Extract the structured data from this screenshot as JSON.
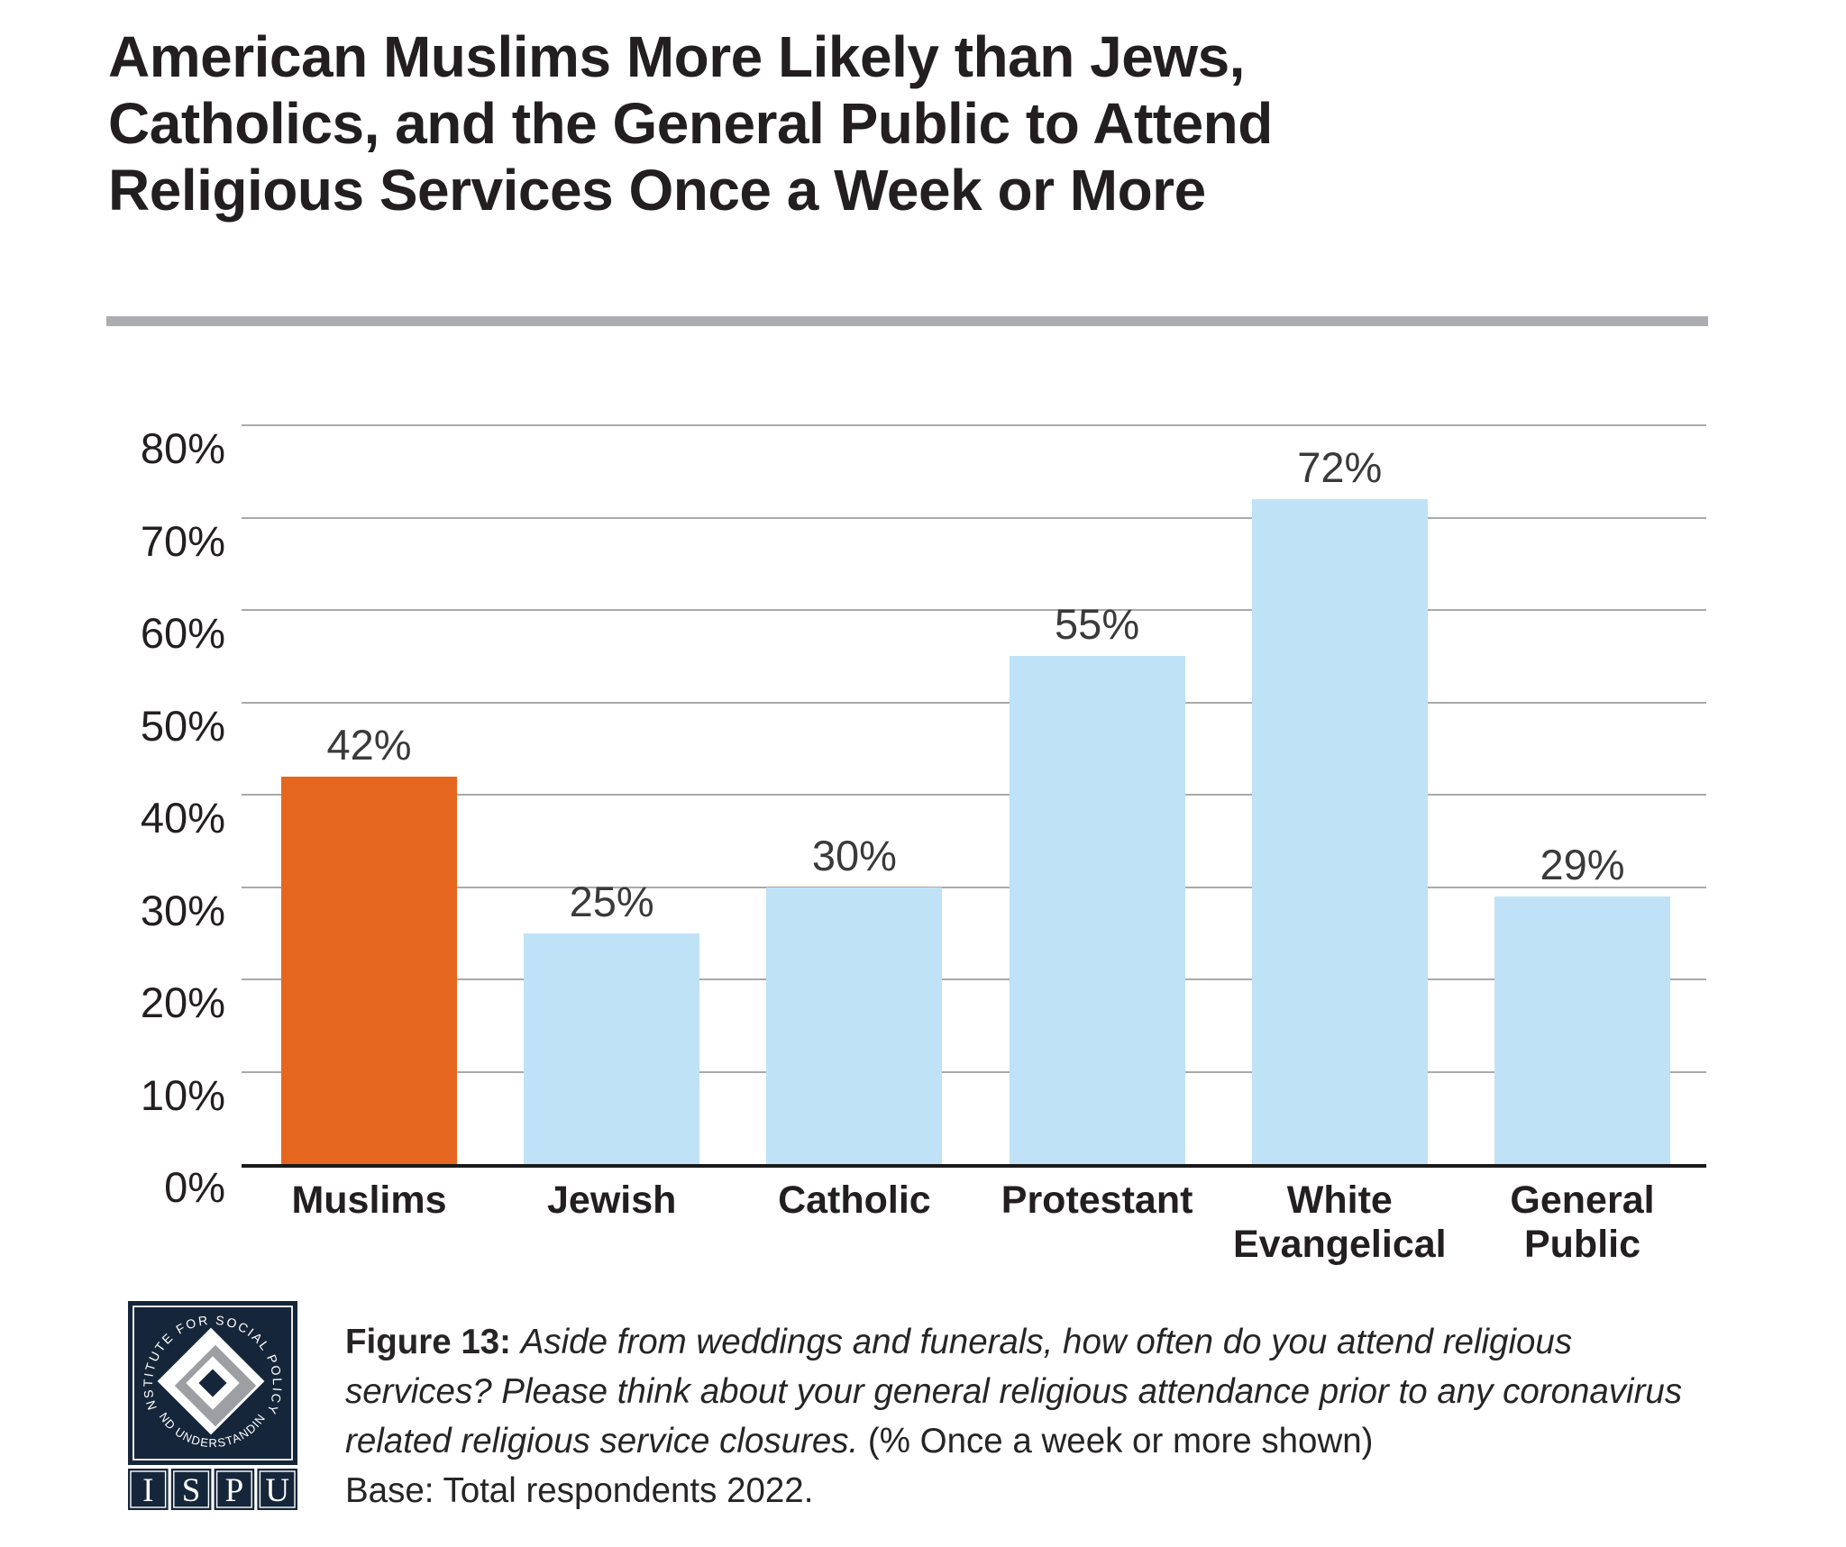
{
  "title": {
    "lines": [
      "American Muslims More Likely than Jews,",
      "Catholics, and the General Public to Attend",
      "Religious Services Once a Week or More"
    ]
  },
  "chart_data": {
    "type": "bar",
    "categories": [
      "Muslims",
      "Jewish",
      "Catholic",
      "Protestant",
      "White\nEvangelical",
      "General\nPublic"
    ],
    "values": [
      42,
      25,
      30,
      55,
      72,
      29
    ],
    "value_labels": [
      "42%",
      "25%",
      "30%",
      "55%",
      "72%",
      "29%"
    ],
    "bar_colors": [
      "#E5671F",
      "#BFE2F7",
      "#BFE2F7",
      "#BFE2F7",
      "#BFE2F7",
      "#BFE2F7"
    ],
    "highlight_color": "#E5671F",
    "default_color": "#BFE2F7",
    "y_ticks": [
      "80%",
      "70%",
      "60%",
      "50%",
      "40%",
      "30%",
      "20%",
      "10%",
      "0%"
    ],
    "ylim": [
      0,
      80
    ],
    "grid": true,
    "legend": "none",
    "title": "American Muslims More Likely than Jews, Catholics, and the General Public to Attend Religious Services Once a Week or More",
    "xlabel": "",
    "ylabel": ""
  },
  "footer": {
    "figure_label": "Figure 13:",
    "question_italic": "Aside from weddings and funerals, how often do you attend religious services? Please think about your general religious attendance prior to any coronavirus related religious service closures.",
    "shown_note": "(% Once a week or more shown)",
    "base_note": "Base: Total respondents 2022.",
    "logo": {
      "ring_text_top": "INSTITUTE FOR SOCIAL POLICY",
      "ring_text_bottom": "AND UNDERSTANDING",
      "acronym": [
        "I",
        "S",
        "P",
        "U"
      ],
      "navy": "#16263A",
      "gray": "#9D9FA2"
    }
  }
}
